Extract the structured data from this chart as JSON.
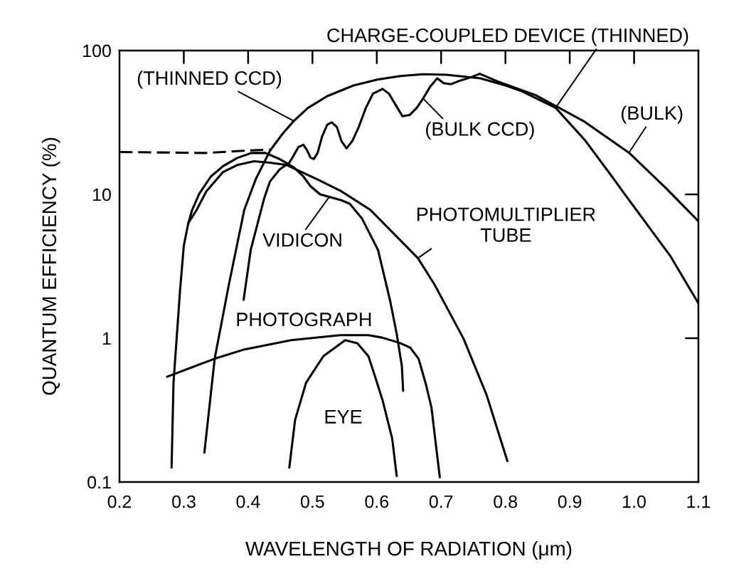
{
  "chart_data": {
    "type": "line",
    "xlabel": "WAVELENGTH OF RADIATION (μm)",
    "ylabel": "QUANTUM EFFICIENCY (%)",
    "xlim": [
      0.2,
      1.1
    ],
    "ylim": [
      0.1,
      100
    ],
    "log": "y",
    "xticks": [
      0.2,
      0.3,
      0.4,
      0.5,
      0.6,
      0.7,
      0.8,
      0.9,
      {
        "value": 1,
        "label": "1.0"
      },
      1.1
    ],
    "yticks": [
      0.1,
      1,
      10,
      100
    ],
    "line_style": "solid",
    "series": [
      {
        "color": "#000000",
        "x": [
          0.332,
          0.348,
          0.37,
          0.394,
          0.412,
          0.434,
          0.453,
          0.471,
          0.493,
          0.523,
          0.564,
          0.601,
          0.637,
          0.672,
          0.708,
          0.761,
          0.8,
          0.826,
          0.878,
          0.923,
          0.961,
          0.985,
          1.056,
          1.1
        ],
        "values": [
          0.16,
          0.72,
          2.35,
          7.8,
          12.8,
          20.1,
          26.2,
          32.4,
          39.9,
          48.2,
          57.2,
          62.8,
          66.6,
          68.4,
          67.9,
          64.1,
          57.2,
          52,
          40,
          24,
          14.2,
          10.1,
          3.75,
          1.75
        ]
      },
      {
        "color": "#000000",
        "x": [
          0.393,
          0.404,
          0.425,
          0.434,
          0.449,
          0.464,
          0.471,
          0.478,
          0.486,
          0.491,
          0.497,
          0.502,
          0.508,
          0.515,
          0.523,
          0.53,
          0.538,
          0.545,
          0.553,
          0.562,
          0.572,
          0.583,
          0.594,
          0.609,
          0.619,
          0.63,
          0.64,
          0.651,
          0.662,
          0.672,
          0.683,
          0.694,
          0.704,
          0.715,
          0.729,
          0.747,
          0.76,
          0.788,
          0.847,
          0.923,
          0.992,
          1.05,
          1.1
        ],
        "values": [
          1.85,
          4.1,
          9.4,
          12.3,
          14.9,
          16.6,
          18.7,
          21.3,
          22.1,
          20.5,
          18,
          17.6,
          19.4,
          25.3,
          30.5,
          31.7,
          29.4,
          23.5,
          20.9,
          23.5,
          29.4,
          39.9,
          50.1,
          54.1,
          50.1,
          41.4,
          34.9,
          35.6,
          39.9,
          46.4,
          56.1,
          64.1,
          59.4,
          58.3,
          61.7,
          65.3,
          69,
          61,
          49,
          32,
          19.5,
          11,
          6.5
        ]
      },
      {
        "color": "#000000",
        "x": [
          0.307,
          0.313,
          0.324,
          0.342,
          0.361,
          0.383,
          0.405,
          0.427,
          0.449,
          0.471,
          0.486,
          0.497,
          0.512,
          0.526,
          0.545,
          0.558,
          0.577,
          0.602,
          0.621,
          0.631,
          0.639,
          0.641
        ],
        "values": [
          6.3,
          7.8,
          10.1,
          13.3,
          15.7,
          17.9,
          19.4,
          19.4,
          17.6,
          15.4,
          13.3,
          11.4,
          10,
          9.6,
          9.1,
          8.6,
          6.8,
          4.1,
          1.8,
          1.07,
          0.64,
          0.43
        ]
      },
      {
        "name": "PHOTOMULTIPLIER\nTUBE",
        "color": "#000000",
        "x": [
          0.281,
          0.284,
          0.294,
          0.3,
          0.307,
          0.32,
          0.335,
          0.361,
          0.383,
          0.409,
          0.434,
          0.46,
          0.508,
          0.545,
          0.59,
          0.664,
          0.69,
          0.735,
          0.771,
          0.803
        ],
        "values": [
          0.126,
          0.49,
          2.1,
          4.4,
          6.3,
          7.8,
          10.5,
          14.3,
          16,
          17,
          16.6,
          16,
          12.7,
          10.5,
          7.8,
          3.6,
          2.35,
          0.99,
          0.4,
          0.14
        ]
      },
      {
        "name": "PHOTOGRAPH",
        "color": "#000000",
        "x": [
          0.274,
          0.288,
          0.348,
          0.392,
          0.467,
          0.543,
          0.587,
          0.608,
          0.635,
          0.652,
          0.665,
          0.676,
          0.685,
          0.692,
          0.698
        ],
        "values": [
          0.54,
          0.57,
          0.72,
          0.83,
          0.97,
          1.05,
          1.05,
          1.01,
          0.93,
          0.86,
          0.72,
          0.485,
          0.33,
          0.18,
          0.108
        ]
      },
      {
        "name": "EYE",
        "color": "#000000",
        "x": [
          0.464,
          0.473,
          0.49,
          0.517,
          0.551,
          0.57,
          0.587,
          0.598,
          0.609,
          0.624,
          0.631
        ],
        "values": [
          0.126,
          0.27,
          0.49,
          0.75,
          0.97,
          0.92,
          0.75,
          0.53,
          0.37,
          0.2,
          0.11
        ]
      },
      {
        "color": "#000000",
        "line_style": "dashed",
        "x": [
          0.2,
          0.334,
          0.392,
          0.436
        ],
        "values": [
          19.7,
          19.4,
          20.1,
          20.5
        ]
      }
    ],
    "annotations": [
      {
        "text": "CHARGE-COUPLED DEVICE (THINNED)",
        "x": 0.878,
        "y": 40
      },
      {
        "text": "(THINNED CCD)",
        "x": 0.471,
        "y": 32.4
      },
      {
        "text": "(BULK CCD)",
        "x": 0.672,
        "y": 46.4
      },
      {
        "text": "(BULK)",
        "x": 0.992,
        "y": 19.5
      },
      {
        "text": "VIDICON",
        "x": 0.526,
        "y": 9.6
      }
    ]
  }
}
